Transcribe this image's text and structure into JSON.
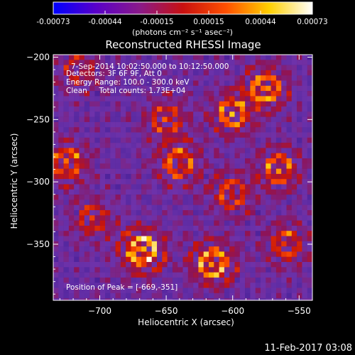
{
  "chart_data": {
    "type": "heatmap",
    "title": "Reconstructed RHESSI Image",
    "xlabel": "Heliocentric X (arcsec)",
    "ylabel": "Heliocentric Y (arcsec)",
    "xlim": [
      -735,
      -540
    ],
    "ylim": [
      -395,
      -198
    ],
    "xticks": [
      -700,
      -650,
      -600,
      -550
    ],
    "yticks": [
      -200,
      -250,
      -300,
      -350
    ],
    "xtick_labels": [
      "−700",
      "−650",
      "−600",
      "−550"
    ],
    "ytick_labels": [
      "−200",
      "−250",
      "−300",
      "−350"
    ],
    "colorbar": {
      "ticks": [
        "-0.00073",
        "-0.00044",
        "-0.00015",
        "0.00015",
        "0.00044",
        "0.00073"
      ],
      "range": [
        -0.00073,
        0.00073
      ],
      "units_label": "(photons cm⁻² s⁻¹ asec⁻²)",
      "colors": [
        "#0000ff",
        "#5a00c8",
        "#8a1a8a",
        "#c81010",
        "#ff5000",
        "#ffd000",
        "#ffffff"
      ]
    },
    "annotations": [
      "7-Sep-2014 10:02:50.000 to 10:12:50.000",
      "Detectors: 3F 6F 9F, Att 0",
      "Energy Range: 100.0 - 300.0 keV",
      "Clean     Total counts: 1.73E+04"
    ],
    "peak_label": "Position of Peak = [-669,-351]",
    "peak": [
      -669,
      -351
    ],
    "bright_regions": [
      {
        "x": -668,
        "y": -355,
        "level": 1.0
      },
      {
        "x": -615,
        "y": -365,
        "level": 0.95
      },
      {
        "x": -575,
        "y": -225,
        "level": 0.8
      },
      {
        "x": -600,
        "y": -245,
        "level": 0.75
      },
      {
        "x": -565,
        "y": -290,
        "level": 0.7
      },
      {
        "x": -640,
        "y": -285,
        "level": 0.7
      },
      {
        "x": -725,
        "y": -285,
        "level": 0.7
      },
      {
        "x": -650,
        "y": -250,
        "level": 0.6
      },
      {
        "x": -600,
        "y": -310,
        "level": 0.6
      },
      {
        "x": -560,
        "y": -350,
        "level": 0.6
      },
      {
        "x": -705,
        "y": -330,
        "level": 0.5
      },
      {
        "x": -715,
        "y": -210,
        "level": 0.45
      }
    ]
  },
  "footer": {
    "timestamp": "11-Feb-2017 03:08"
  }
}
